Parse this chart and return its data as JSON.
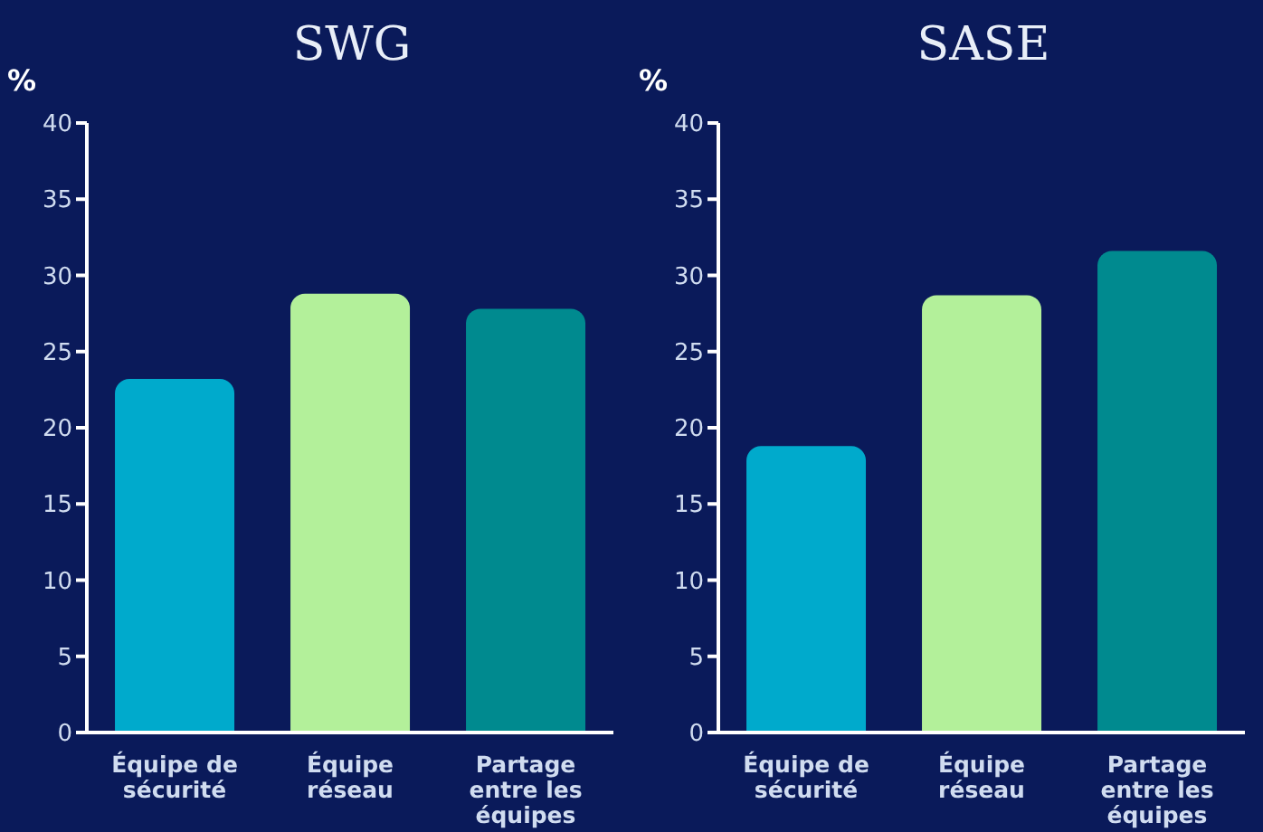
{
  "chart_data": [
    {
      "type": "bar",
      "title": "SWG",
      "ylabel": "%",
      "categories": [
        "Équipe de sécurité",
        "Équipe réseau",
        "Partage entre les équipes"
      ],
      "values": [
        23.2,
        28.8,
        27.8
      ],
      "colors": [
        "#00aacc",
        "#b3f09a",
        "#008a8f"
      ],
      "ylim": [
        0,
        40
      ],
      "yticks": [
        0,
        5,
        10,
        15,
        20,
        25,
        30,
        35,
        40
      ],
      "grid": false
    },
    {
      "type": "bar",
      "title": "SASE",
      "ylabel": "%",
      "categories": [
        "Équipe de sécurité",
        "Équipe réseau",
        "Partage entre les équipes"
      ],
      "values": [
        18.8,
        28.7,
        31.6
      ],
      "colors": [
        "#00aacc",
        "#b3f09a",
        "#008a8f"
      ],
      "ylim": [
        0,
        40
      ],
      "yticks": [
        0,
        5,
        10,
        15,
        20,
        25,
        30,
        35,
        40
      ],
      "grid": false
    }
  ]
}
